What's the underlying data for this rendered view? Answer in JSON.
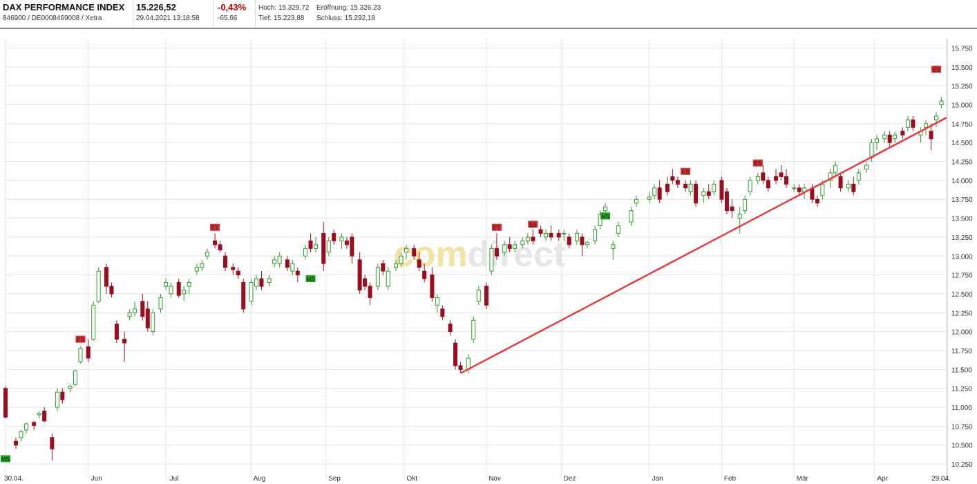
{
  "header": {
    "name": "DAX PERFORMANCE INDEX",
    "ids": "846900 / DE0008469008 / Xetra",
    "price": "15.226,52",
    "datetime": "29.04.2021 13:18:58",
    "change_pct": "-0,43%",
    "change_abs": "-65,66",
    "hoch": "Hoch: 15.329,72",
    "tief": "Tief: 15.223,88",
    "eroeffnung": "Eröffnung: 15.326,23",
    "schluss": "Schluss: 15.292,18"
  },
  "watermark": {
    "part1": "comdirect",
    "color1": "#f3e2a0",
    "color2": "#e6e6e6"
  },
  "colors": {
    "up": "#2e9a2e",
    "down": "#9a0d1e",
    "trend": "#e83a3a",
    "grid": "#e3e3e3",
    "ms": "#1fa51f",
    "es": "#d92f2f"
  },
  "chart_data": {
    "type": "candlestick",
    "title": "DAX PERFORMANCE INDEX",
    "ylim": [
      10150,
      15800
    ],
    "yticks": [
      "10.250",
      "10.500",
      "10.750",
      "11.000",
      "11.250",
      "11.500",
      "11.750",
      "12.000",
      "12.250",
      "12.500",
      "12.750",
      "13.000",
      "13.250",
      "13.500",
      "13.750",
      "14.000",
      "14.250",
      "14.500",
      "14.750",
      "15.000",
      "15.250",
      "15.500",
      "15.750"
    ],
    "ytick_values": [
      10250,
      10500,
      10750,
      11000,
      11250,
      11500,
      11750,
      12000,
      12250,
      12500,
      12750,
      13000,
      13250,
      13500,
      13750,
      14000,
      14250,
      14500,
      14750,
      15000,
      15250,
      15500,
      15750
    ],
    "x_labels": [
      "30.04.",
      "Jun",
      "Jul",
      "Aug",
      "Sep",
      "Okt",
      "Nov",
      "Dez",
      "Jan",
      "Feb",
      "Mär",
      "Apr",
      "29.04."
    ],
    "x_dates": [
      "2020-04-30",
      "2020-06-01",
      "2020-07-01",
      "2020-08-03",
      "2020-09-01",
      "2020-10-01",
      "2020-11-02",
      "2020-12-01",
      "2021-01-04",
      "2021-02-01",
      "2021-03-01",
      "2021-04-01",
      "2021-04-29"
    ],
    "grid": true,
    "candles": [
      [
        "2020-04-30",
        11250,
        11280,
        10850,
        10870
      ],
      [
        "2020-05-04",
        10550,
        10600,
        10450,
        10500
      ],
      [
        "2020-05-06",
        10600,
        10700,
        10550,
        10680
      ],
      [
        "2020-05-08",
        10700,
        10800,
        10650,
        10780
      ],
      [
        "2020-05-11",
        10800,
        10820,
        10700,
        10760
      ],
      [
        "2020-05-13",
        10900,
        10950,
        10850,
        10920
      ],
      [
        "2020-05-15",
        10950,
        11000,
        10800,
        10820
      ],
      [
        "2020-05-18",
        10600,
        10650,
        10300,
        10450
      ],
      [
        "2020-05-20",
        11000,
        11250,
        10950,
        11200
      ],
      [
        "2020-05-22",
        11200,
        11250,
        11050,
        11100
      ],
      [
        "2020-05-25",
        11250,
        11300,
        11200,
        11280
      ],
      [
        "2020-05-27",
        11300,
        11500,
        11280,
        11480
      ],
      [
        "2020-05-29",
        11600,
        11800,
        11580,
        11780
      ],
      [
        "2020-06-01",
        11800,
        11900,
        11600,
        11650
      ],
      [
        "2020-06-03",
        11900,
        12400,
        11880,
        12350
      ],
      [
        "2020-06-05",
        12400,
        12850,
        12380,
        12800
      ],
      [
        "2020-06-08",
        12850,
        12900,
        12500,
        12600
      ],
      [
        "2020-06-10",
        12600,
        12650,
        12450,
        12500
      ],
      [
        "2020-06-12",
        12100,
        12150,
        11850,
        11900
      ],
      [
        "2020-06-15",
        11900,
        12000,
        11600,
        11850
      ],
      [
        "2020-06-17",
        12200,
        12300,
        12150,
        12250
      ],
      [
        "2020-06-19",
        12250,
        12400,
        12200,
        12300
      ],
      [
        "2020-06-22",
        12400,
        12500,
        12150,
        12200
      ],
      [
        "2020-06-24",
        12300,
        12400,
        12000,
        12050
      ],
      [
        "2020-06-26",
        12000,
        12300,
        11950,
        12250
      ],
      [
        "2020-06-29",
        12300,
        12500,
        12250,
        12450
      ],
      [
        "2020-07-01",
        12600,
        12700,
        12550,
        12650
      ],
      [
        "2020-07-03",
        12500,
        12650,
        12450,
        12600
      ],
      [
        "2020-07-06",
        12650,
        12700,
        12450,
        12480
      ],
      [
        "2020-07-08",
        12500,
        12600,
        12400,
        12550
      ],
      [
        "2020-07-10",
        12600,
        12700,
        12500,
        12650
      ],
      [
        "2020-07-13",
        12800,
        12900,
        12750,
        12850
      ],
      [
        "2020-07-15",
        12850,
        12950,
        12800,
        12900
      ],
      [
        "2020-07-17",
        13000,
        13100,
        12950,
        13050
      ],
      [
        "2020-07-20",
        13200,
        13300,
        13100,
        13150
      ],
      [
        "2020-07-22",
        13150,
        13200,
        13050,
        13080
      ],
      [
        "2020-07-24",
        13000,
        13050,
        12800,
        12850
      ],
      [
        "2020-07-27",
        12850,
        12900,
        12750,
        12820
      ],
      [
        "2020-07-29",
        12800,
        12850,
        12700,
        12750
      ],
      [
        "2020-07-31",
        12650,
        12700,
        12250,
        12300
      ],
      [
        "2020-08-03",
        12400,
        12700,
        12350,
        12650
      ],
      [
        "2020-08-05",
        12600,
        12750,
        12550,
        12700
      ],
      [
        "2020-08-07",
        12700,
        12800,
        12550,
        12600
      ],
      [
        "2020-08-10",
        12650,
        12750,
        12600,
        12700
      ],
      [
        "2020-08-12",
        12900,
        13000,
        12850,
        12950
      ],
      [
        "2020-08-14",
        12900,
        13050,
        12850,
        13000
      ],
      [
        "2020-08-17",
        12950,
        13000,
        12800,
        12850
      ],
      [
        "2020-08-19",
        12800,
        12950,
        12750,
        12900
      ],
      [
        "2020-08-21",
        12800,
        12850,
        12650,
        12750
      ],
      [
        "2020-08-24",
        13000,
        13150,
        12950,
        13100
      ],
      [
        "2020-08-26",
        13200,
        13300,
        13050,
        13100
      ],
      [
        "2020-08-28",
        13100,
        13250,
        13050,
        13150
      ],
      [
        "2020-08-31",
        13300,
        13450,
        12800,
        12900
      ],
      [
        "2020-09-02",
        13050,
        13250,
        13000,
        13200
      ],
      [
        "2020-09-04",
        13300,
        13350,
        13150,
        13200
      ],
      [
        "2020-09-07",
        13200,
        13300,
        13100,
        13250
      ],
      [
        "2020-09-09",
        13200,
        13250,
        13100,
        13150
      ],
      [
        "2020-09-11",
        13250,
        13300,
        12900,
        13000
      ],
      [
        "2020-09-14",
        12950,
        13050,
        12500,
        12550
      ],
      [
        "2020-09-16",
        12700,
        12750,
        12550,
        12600
      ],
      [
        "2020-09-18",
        12600,
        12650,
        12350,
        12450
      ],
      [
        "2020-09-21",
        12600,
        12900,
        12550,
        12850
      ],
      [
        "2020-09-23",
        12900,
        12950,
        12750,
        12800
      ],
      [
        "2020-09-25",
        12600,
        12850,
        12550,
        12800
      ],
      [
        "2020-09-28",
        12850,
        12950,
        12800,
        12900
      ],
      [
        "2020-09-30",
        12900,
        13050,
        12850,
        13000
      ],
      [
        "2020-10-02",
        13050,
        13150,
        12950,
        13100
      ],
      [
        "2020-10-05",
        13100,
        13150,
        12950,
        13000
      ],
      [
        "2020-10-07",
        12950,
        13050,
        12800,
        12850
      ],
      [
        "2020-10-09",
        12800,
        12900,
        12650,
        12700
      ],
      [
        "2020-10-12",
        12750,
        12850,
        12400,
        12450
      ],
      [
        "2020-10-14",
        12350,
        12500,
        12250,
        12450
      ],
      [
        "2020-10-16",
        12300,
        12350,
        12150,
        12200
      ],
      [
        "2020-10-19",
        12100,
        12150,
        11950,
        12000
      ],
      [
        "2020-10-21",
        11850,
        11900,
        11500,
        11550
      ],
      [
        "2020-10-23",
        11550,
        11600,
        11450,
        11500
      ],
      [
        "2020-10-26",
        11500,
        11700,
        11450,
        11650
      ],
      [
        "2020-10-28",
        11900,
        12200,
        11850,
        12150
      ],
      [
        "2020-10-30",
        12400,
        12600,
        12350,
        12550
      ],
      [
        "2020-11-02",
        12600,
        12650,
        12300,
        12350
      ],
      [
        "2020-11-04",
        12800,
        13150,
        12750,
        13100
      ],
      [
        "2020-11-06",
        13100,
        13300,
        12950,
        13000
      ],
      [
        "2020-11-09",
        13050,
        13200,
        13000,
        13150
      ],
      [
        "2020-11-11",
        13150,
        13250,
        13050,
        13100
      ],
      [
        "2020-11-13",
        13100,
        13200,
        13050,
        13150
      ],
      [
        "2020-11-16",
        13150,
        13250,
        13100,
        13200
      ],
      [
        "2020-11-18",
        13200,
        13300,
        13150,
        13250
      ],
      [
        "2020-11-20",
        13250,
        13350,
        13150,
        13200
      ],
      [
        "2020-11-23",
        13350,
        13400,
        13250,
        13300
      ],
      [
        "2020-11-25",
        13250,
        13350,
        13200,
        13300
      ],
      [
        "2020-11-27",
        13300,
        13400,
        13200,
        13250
      ],
      [
        "2020-11-30",
        13300,
        13350,
        13200,
        13250
      ],
      [
        "2020-12-02",
        13300,
        13350,
        13200,
        13300
      ],
      [
        "2020-12-04",
        13250,
        13300,
        13100,
        13150
      ],
      [
        "2020-12-07",
        13200,
        13350,
        13150,
        13300
      ],
      [
        "2020-12-09",
        13250,
        13300,
        13000,
        13150
      ],
      [
        "2020-12-11",
        13150,
        13200,
        13100,
        13180
      ],
      [
        "2020-12-14",
        13200,
        13400,
        13150,
        13350
      ],
      [
        "2020-12-16",
        13400,
        13600,
        13350,
        13550
      ],
      [
        "2020-12-18",
        13600,
        13700,
        13550,
        13650
      ],
      [
        "2020-12-21",
        13100,
        13200,
        12950,
        13150
      ],
      [
        "2020-12-23",
        13300,
        13450,
        13250,
        13400
      ],
      [
        "2020-12-28",
        13450,
        13650,
        13400,
        13600
      ],
      [
        "2020-12-30",
        13700,
        13800,
        13650,
        13750
      ],
      [
        "2021-01-04",
        13750,
        13850,
        13700,
        13780
      ],
      [
        "2021-01-06",
        13800,
        13950,
        13750,
        13900
      ],
      [
        "2021-01-08",
        13900,
        14000,
        13700,
        13750
      ],
      [
        "2021-01-11",
        13950,
        14050,
        13800,
        13850
      ],
      [
        "2021-01-13",
        14050,
        14150,
        13950,
        14000
      ],
      [
        "2021-01-15",
        14000,
        14050,
        13900,
        13950
      ],
      [
        "2021-01-18",
        13950,
        14000,
        13850,
        13900
      ],
      [
        "2021-01-20",
        13850,
        14000,
        13800,
        13950
      ],
      [
        "2021-01-22",
        13950,
        14000,
        13650,
        13700
      ],
      [
        "2021-01-25",
        13800,
        13900,
        13700,
        13850
      ],
      [
        "2021-01-27",
        13850,
        13950,
        13750,
        13800
      ],
      [
        "2021-01-29",
        13850,
        14000,
        13800,
        13950
      ],
      [
        "2021-02-01",
        14000,
        14050,
        13700,
        13750
      ],
      [
        "2021-02-03",
        13850,
        13900,
        13550,
        13600
      ],
      [
        "2021-02-05",
        13650,
        13750,
        13500,
        13600
      ],
      [
        "2021-02-08",
        13500,
        13650,
        13300,
        13550
      ],
      [
        "2021-02-10",
        13600,
        13800,
        13550,
        13750
      ],
      [
        "2021-02-12",
        13850,
        14050,
        13800,
        14000
      ],
      [
        "2021-02-15",
        14000,
        14100,
        13950,
        14050
      ],
      [
        "2021-02-17",
        14100,
        14200,
        13950,
        14000
      ],
      [
        "2021-02-19",
        14000,
        14050,
        13850,
        13900
      ],
      [
        "2021-02-22",
        14050,
        14150,
        13950,
        14000
      ],
      [
        "2021-02-24",
        14100,
        14200,
        14000,
        14050
      ],
      [
        "2021-02-26",
        14050,
        14150,
        13900,
        13950
      ],
      [
        "2021-03-01",
        13900,
        13950,
        13850,
        13900
      ],
      [
        "2021-03-03",
        13900,
        13950,
        13800,
        13850
      ],
      [
        "2021-03-05",
        13850,
        13950,
        13750,
        13900
      ],
      [
        "2021-03-08",
        13900,
        13950,
        13700,
        13750
      ],
      [
        "2021-03-10",
        13750,
        13800,
        13650,
        13700
      ],
      [
        "2021-03-12",
        13800,
        14000,
        13750,
        13950
      ],
      [
        "2021-03-15",
        14000,
        14150,
        13900,
        14100
      ],
      [
        "2021-03-17",
        14100,
        14250,
        14050,
        14200
      ],
      [
        "2021-03-19",
        14050,
        14100,
        13850,
        13900
      ],
      [
        "2021-03-22",
        13900,
        14000,
        13850,
        13950
      ],
      [
        "2021-03-24",
        13950,
        14050,
        13800,
        13850
      ],
      [
        "2021-03-26",
        14000,
        14150,
        13950,
        14100
      ],
      [
        "2021-03-29",
        14150,
        14250,
        14100,
        14200
      ],
      [
        "2021-03-31",
        14300,
        14550,
        14250,
        14500
      ],
      [
        "2021-04-02",
        14500,
        14600,
        14400,
        14550
      ],
      [
        "2021-04-05",
        14550,
        14650,
        14500,
        14600
      ],
      [
        "2021-04-07",
        14600,
        14650,
        14450,
        14500
      ],
      [
        "2021-04-09",
        14550,
        14650,
        14500,
        14600
      ],
      [
        "2021-04-12",
        14650,
        14700,
        14550,
        14600
      ],
      [
        "2021-04-14",
        14700,
        14850,
        14650,
        14800
      ],
      [
        "2021-04-16",
        14800,
        14850,
        14650,
        14700
      ],
      [
        "2021-04-19",
        14600,
        14700,
        14500,
        14650
      ],
      [
        "2021-04-21",
        14700,
        14800,
        14600,
        14750
      ],
      [
        "2021-04-23",
        14650,
        14750,
        14400,
        14550
      ],
      [
        "2021-04-25",
        14800,
        14900,
        14700,
        14850
      ],
      [
        "2021-04-27",
        15000,
        15100,
        14950,
        15050
      ]
    ],
    "trendline": [
      [
        "2020-10-23",
        11450
      ],
      [
        "2021-04-29",
        14830
      ]
    ],
    "markers": [
      {
        "label": "MS",
        "date": "2020-04-30",
        "value": 10320,
        "kind": "buy"
      },
      {
        "label": "ES",
        "date": "2020-05-29",
        "value": 11900,
        "kind": "sell"
      },
      {
        "label": "ES",
        "date": "2020-07-20",
        "value": 13380,
        "kind": "sell"
      },
      {
        "label": "MS",
        "date": "2020-08-26",
        "value": 12700,
        "kind": "buy"
      },
      {
        "label": "ES",
        "date": "2020-11-06",
        "value": 13380,
        "kind": "sell"
      },
      {
        "label": "ES",
        "date": "2020-11-20",
        "value": 13420,
        "kind": "sell"
      },
      {
        "label": "MS",
        "date": "2020-12-18",
        "value": 13530,
        "kind": "buy"
      },
      {
        "label": "ES",
        "date": "2021-01-18",
        "value": 14120,
        "kind": "sell"
      },
      {
        "label": "ES",
        "date": "2021-02-15",
        "value": 14230,
        "kind": "sell"
      },
      {
        "label": "ES",
        "date": "2021-04-25",
        "value": 15470,
        "kind": "sell"
      }
    ]
  }
}
